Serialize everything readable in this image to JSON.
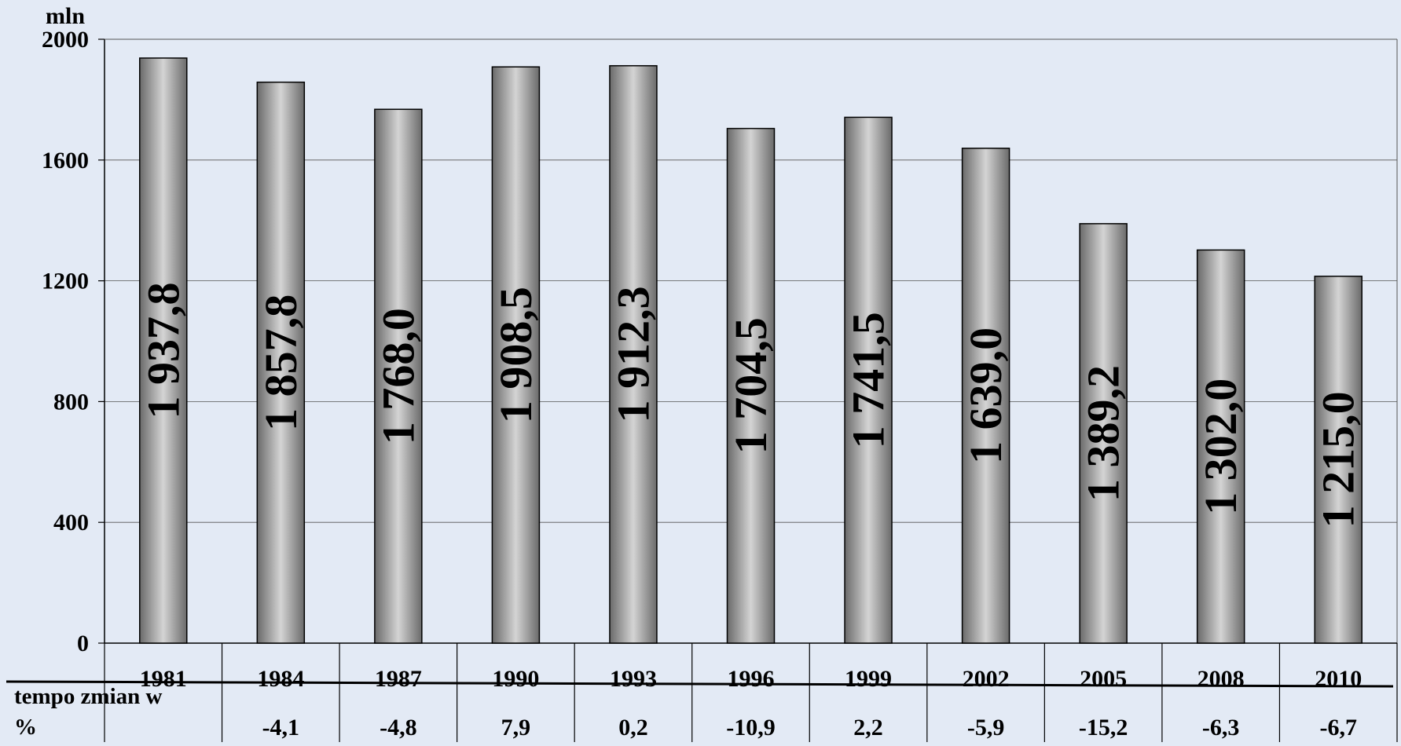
{
  "chart_data": {
    "type": "bar",
    "ylabel": "mln",
    "ylim": [
      0,
      2000
    ],
    "yticks": [
      0,
      400,
      800,
      1200,
      1600,
      2000
    ],
    "ytick_labels": [
      "0",
      "400",
      "800",
      "1200",
      "1600",
      "2000"
    ],
    "grid": true,
    "categories": [
      "1981",
      "1984",
      "1987",
      "1990",
      "1993",
      "1996",
      "1999",
      "2002",
      "2005",
      "2008",
      "2010"
    ],
    "values": [
      1937.8,
      1857.8,
      1768.0,
      1908.5,
      1912.3,
      1704.5,
      1741.5,
      1639.0,
      1389.2,
      1302.0,
      1215.0
    ],
    "value_labels": [
      "1 937,8",
      "1 857,8",
      "1 768,0",
      "1 908,5",
      "1 912,3",
      "1 704,5",
      "1 741,5",
      "1 639,0",
      "1 389,2",
      "1 302,0",
      "1 215,0"
    ],
    "table": {
      "row_label": "tempo zmian w %",
      "values": [
        "",
        "-4,1",
        "-4,8",
        "7,9",
        "0,2",
        "-10,9",
        "2,2",
        "-5,9",
        "-15,2",
        "-6,3",
        "-6,7"
      ]
    }
  },
  "colors": {
    "background": "#e3eaf5",
    "bar_dark": "#6a6a6a",
    "bar_light": "#d4d4d4",
    "bar_stroke": "#000000",
    "grid": "#555555"
  }
}
